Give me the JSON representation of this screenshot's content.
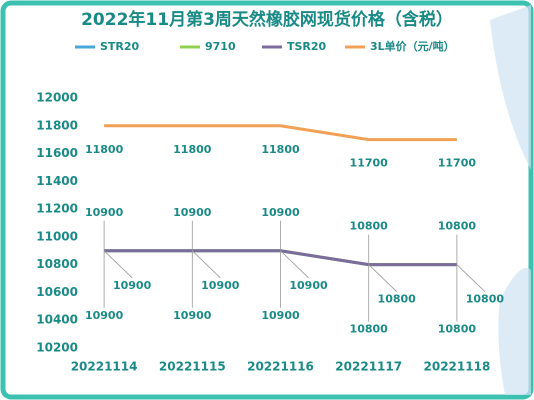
{
  "chart_data": {
    "type": "line",
    "title": "2022年11月第3周天然橡胶网现货价格（含税）",
    "categories": [
      "20221114",
      "20221115",
      "20221116",
      "20221117",
      "20221118"
    ],
    "series": [
      {
        "name": "STR20",
        "color": "#4aa8d8",
        "values": [
          10900,
          10900,
          10900,
          10800,
          10800
        ]
      },
      {
        "name": "9710",
        "color": "#8fd14f",
        "values": [
          10900,
          10900,
          10900,
          10800,
          10800
        ]
      },
      {
        "name": "TSR20",
        "color": "#7b6c9c",
        "values": [
          10900,
          10900,
          10900,
          10800,
          10800
        ]
      },
      {
        "name": "3L单价（元/吨）",
        "color": "#f2a055",
        "values": [
          11800,
          11800,
          11800,
          11700,
          11700
        ]
      }
    ],
    "ylim": [
      10200,
      12000
    ],
    "yticks": [
      10200,
      10400,
      10600,
      10800,
      11000,
      11200,
      11400,
      11600,
      11800,
      12000
    ],
    "grid": false
  }
}
